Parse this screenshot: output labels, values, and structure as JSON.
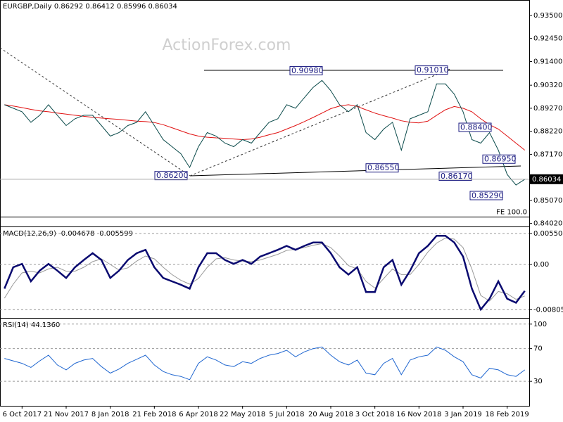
{
  "chart_data": [
    {
      "type": "line",
      "title": "EURGBP,Daily 0.86292 0.86412 0.85996 0.86034",
      "watermark": "ActionForex.com",
      "series": [
        {
          "name": "Close",
          "color": "#0a4a4a",
          "values": [
            0.8943,
            0.8927,
            0.8911,
            0.8863,
            0.8895,
            0.8943,
            0.8895,
            0.8848,
            0.8879,
            0.8895,
            0.8895,
            0.8848,
            0.88,
            0.8816,
            0.8848,
            0.8863,
            0.8911,
            0.8848,
            0.8784,
            0.8752,
            0.872,
            0.8657,
            0.8752,
            0.8816,
            0.88,
            0.8768,
            0.8752,
            0.8784,
            0.8768,
            0.8816,
            0.8863,
            0.8879,
            0.8943,
            0.8927,
            0.8975,
            0.9022,
            0.9054,
            0.9007,
            0.8943,
            0.8911,
            0.8943,
            0.8816,
            0.8784,
            0.8832,
            0.8863,
            0.8736,
            0.8879,
            0.8895,
            0.8911,
            0.9038,
            0.9038,
            0.8991,
            0.8911,
            0.8784,
            0.8768,
            0.8816,
            0.8736,
            0.8625,
            0.8577,
            0.8603
          ]
        },
        {
          "name": "MA",
          "color": "#e01010",
          "values": [
            0.8943,
            0.8937,
            0.893,
            0.8922,
            0.8915,
            0.8911,
            0.8905,
            0.89,
            0.8895,
            0.889,
            0.8886,
            0.8882,
            0.8879,
            0.8876,
            0.8872,
            0.8868,
            0.8866,
            0.8862,
            0.8852,
            0.8838,
            0.8824,
            0.881,
            0.88,
            0.8795,
            0.8792,
            0.879,
            0.8787,
            0.8784,
            0.8787,
            0.8795,
            0.8806,
            0.8816,
            0.8832,
            0.8848,
            0.8866,
            0.8885,
            0.8905,
            0.8925,
            0.8937,
            0.8943,
            0.8935,
            0.892,
            0.8905,
            0.8893,
            0.8882,
            0.887,
            0.8863,
            0.886,
            0.8868,
            0.8895,
            0.892,
            0.8935,
            0.8927,
            0.8911,
            0.8879,
            0.8852,
            0.8832,
            0.88,
            0.8768,
            0.8736
          ]
        }
      ],
      "ylim": [
        0.8388,
        0.9414
      ],
      "yticks": [
        {
          "value": 0.935,
          "label": "0.93500"
        },
        {
          "value": 0.9245,
          "label": "0.92450"
        },
        {
          "value": 0.914,
          "label": "0.91400"
        },
        {
          "value": 0.9032,
          "label": "0.90320"
        },
        {
          "value": 0.8927,
          "label": "0.89270"
        },
        {
          "value": 0.8822,
          "label": "0.88220"
        },
        {
          "value": 0.8717,
          "label": "0.87170"
        },
        {
          "value": 0.8507,
          "label": "0.85070"
        },
        {
          "value": 0.8402,
          "label": "0.84020"
        }
      ],
      "annotations": [
        {
          "value": 0.862,
          "label": "0.86200"
        },
        {
          "value": 0.9098,
          "label": "0.90980"
        },
        {
          "value": 0.9101,
          "label": "0.91010"
        },
        {
          "value": 0.884,
          "label": "0.88400"
        },
        {
          "value": 0.8695,
          "label": "0.86950"
        },
        {
          "value": 0.8655,
          "label": "0.86550"
        },
        {
          "value": 0.8617,
          "label": "0.86170"
        },
        {
          "value": 0.8529,
          "label": "0.85290"
        }
      ],
      "last_price": {
        "value": 0.86034,
        "label": "0.86034"
      },
      "fe": {
        "value": 0.8431,
        "label": "FE 100.0"
      }
    },
    {
      "type": "line",
      "title": "MACD(12,26,9) -0.004678 -0.005599",
      "series": [
        {
          "name": "MACD",
          "color": "#0a0a70",
          "values": [
            -0.0043,
            -0.0005,
            0.0001,
            -0.003,
            -0.0011,
            0.0001,
            -0.0011,
            -0.0024,
            -0.0005,
            0.0008,
            0.002,
            0.0008,
            -0.0024,
            -0.0011,
            0.0008,
            0.002,
            0.0026,
            -0.0005,
            -0.0024,
            -0.003,
            -0.0036,
            -0.0043,
            -0.0005,
            0.002,
            0.002,
            0.0008,
            0.0001,
            0.0008,
            0.0001,
            0.0014,
            0.002,
            0.0026,
            0.0033,
            0.0026,
            0.0033,
            0.0039,
            0.0039,
            0.002,
            -0.0005,
            -0.0018,
            -0.0005,
            -0.0049,
            -0.0049,
            -0.0005,
            0.0008,
            -0.0036,
            -0.0011,
            0.002,
            0.0033,
            0.0051,
            0.0051,
            0.0039,
            0.0014,
            -0.0043,
            -0.008,
            -0.0061,
            -0.003,
            -0.0061,
            -0.0068,
            -0.0047
          ]
        },
        {
          "name": "Signal",
          "color": "#999999",
          "values": [
            -0.006,
            -0.0035,
            -0.0015,
            -0.0012,
            -0.0015,
            -0.0008,
            -0.0005,
            -0.0012,
            -0.0012,
            -0.0005,
            0.0005,
            0.001,
            0.0,
            -0.001,
            -0.0006,
            0.0006,
            0.0015,
            0.001,
            -0.0005,
            -0.0018,
            -0.0028,
            -0.0035,
            -0.0025,
            -0.0005,
            0.001,
            0.0012,
            0.0008,
            0.0006,
            0.0005,
            0.0008,
            0.0013,
            0.0018,
            0.0025,
            0.0027,
            0.003,
            0.0034,
            0.0037,
            0.003,
            0.0015,
            -0.0002,
            -0.0008,
            -0.003,
            -0.0042,
            -0.0025,
            -0.0008,
            -0.0018,
            -0.0018,
            0.0,
            0.0022,
            0.0038,
            0.0047,
            0.0045,
            0.003,
            -0.0008,
            -0.0055,
            -0.0065,
            -0.0048,
            -0.0052,
            -0.0062,
            -0.0056
          ]
        }
      ],
      "ylim": [
        -0.0095,
        0.00638
      ],
      "yticks": [
        0.005504,
        {
          "value": 0,
          "label": "0.00"
        },
        -0.00805
      ]
    },
    {
      "type": "line",
      "title": "RSI(14) 44.1360",
      "series": [
        {
          "name": "RSI",
          "color": "#1f66d0",
          "values": [
            58,
            55,
            52,
            47,
            55,
            62,
            50,
            44,
            52,
            56,
            58,
            48,
            40,
            45,
            52,
            57,
            62,
            50,
            42,
            38,
            36,
            32,
            52,
            60,
            56,
            50,
            48,
            54,
            52,
            58,
            62,
            64,
            68,
            60,
            66,
            70,
            72,
            62,
            54,
            50,
            56,
            40,
            38,
            52,
            58,
            38,
            56,
            60,
            62,
            72,
            68,
            60,
            54,
            38,
            34,
            46,
            44,
            38,
            36,
            44
          ]
        }
      ],
      "categories": [
        null,
        null,
        "6 Oct 2017",
        null,
        null,
        null,
        null,
        "21 Nov 2017",
        null,
        null,
        null,
        null,
        "8 Jan 2018",
        null,
        null,
        null,
        null,
        "21 Feb 2018",
        null,
        null,
        null,
        null,
        "6 Apr 2018",
        null,
        null,
        null,
        null,
        "22 May 2018",
        null,
        null,
        null,
        null,
        "5 Jul 2018",
        null,
        null,
        null,
        null,
        "20 Aug 2018",
        null,
        null,
        null,
        null,
        "3 Oct 2018",
        null,
        null,
        null,
        null,
        "16 Nov 2018",
        null,
        null,
        null,
        null,
        "3 Jan 2019",
        null,
        null,
        null,
        null,
        "18 Feb 2019",
        null,
        null
      ],
      "ylim": [
        0,
        105
      ],
      "yticks": [
        100,
        70,
        30
      ]
    }
  ]
}
